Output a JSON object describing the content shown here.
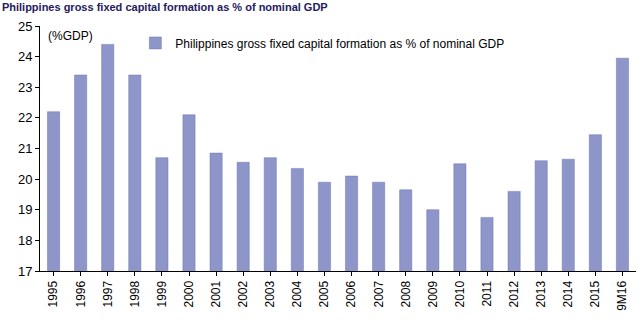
{
  "chart_data": {
    "type": "bar",
    "title": "Philippines gross fixed capital formation as % of nominal GDP",
    "ylabel": "(%GDP)",
    "categories": [
      "1995",
      "1996",
      "1997",
      "1998",
      "1999",
      "2000",
      "2001",
      "2002",
      "2003",
      "2004",
      "2005",
      "2006",
      "2007",
      "2008",
      "2009",
      "2010",
      "2011",
      "2012",
      "2013",
      "2014",
      "2015",
      "9M16"
    ],
    "series": [
      {
        "name": "Philippines gross fixed capital formation as % of nominal GDP",
        "color": "#8e95c9",
        "values": [
          22.2,
          23.4,
          24.4,
          23.4,
          20.7,
          22.1,
          20.85,
          20.55,
          20.7,
          20.35,
          19.9,
          20.1,
          19.9,
          19.65,
          19.0,
          20.5,
          18.75,
          19.6,
          20.6,
          20.65,
          21.45,
          23.95
        ]
      }
    ],
    "ylim": [
      17,
      25
    ],
    "yticks": [
      17,
      18,
      19,
      20,
      21,
      22,
      23,
      24,
      25
    ],
    "grid": false,
    "legend": "top"
  }
}
